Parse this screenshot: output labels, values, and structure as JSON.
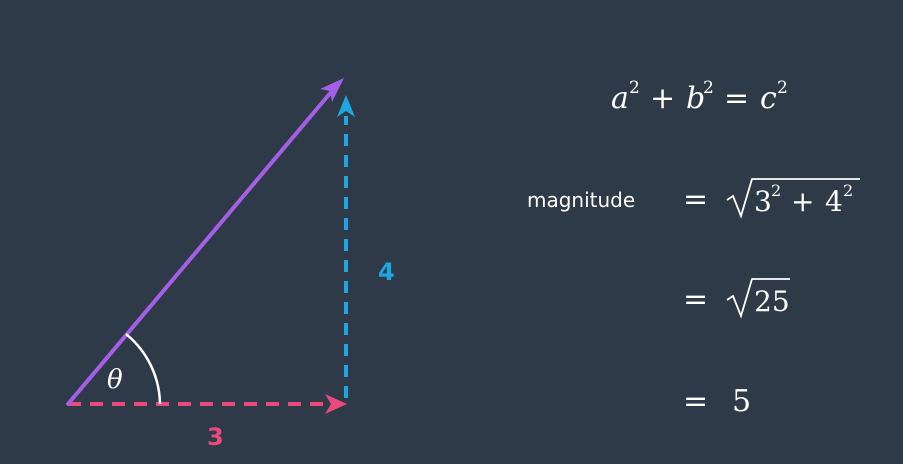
{
  "diagram": {
    "horizontal_label": "3",
    "vertical_label": "4",
    "angle_symbol": "θ",
    "colors": {
      "background": "#2e3a48",
      "horizontal": "#ea4a7d",
      "vertical": "#1ea6e0",
      "hypotenuse": "#a55fe6",
      "angle_arc": "#ffffff",
      "text": "#ffffff"
    }
  },
  "equations": {
    "pythagorean": {
      "a": "a",
      "b": "b",
      "c": "c",
      "exp": "2",
      "plus": "+",
      "eq": "="
    },
    "magnitude_label": "magnitude",
    "line1": {
      "eq": "=",
      "base1": "3",
      "base2": "4",
      "exp": "2",
      "plus": "+"
    },
    "line2": {
      "eq": "=",
      "radicand": "25"
    },
    "line3": {
      "eq": "=",
      "result": "5"
    }
  }
}
